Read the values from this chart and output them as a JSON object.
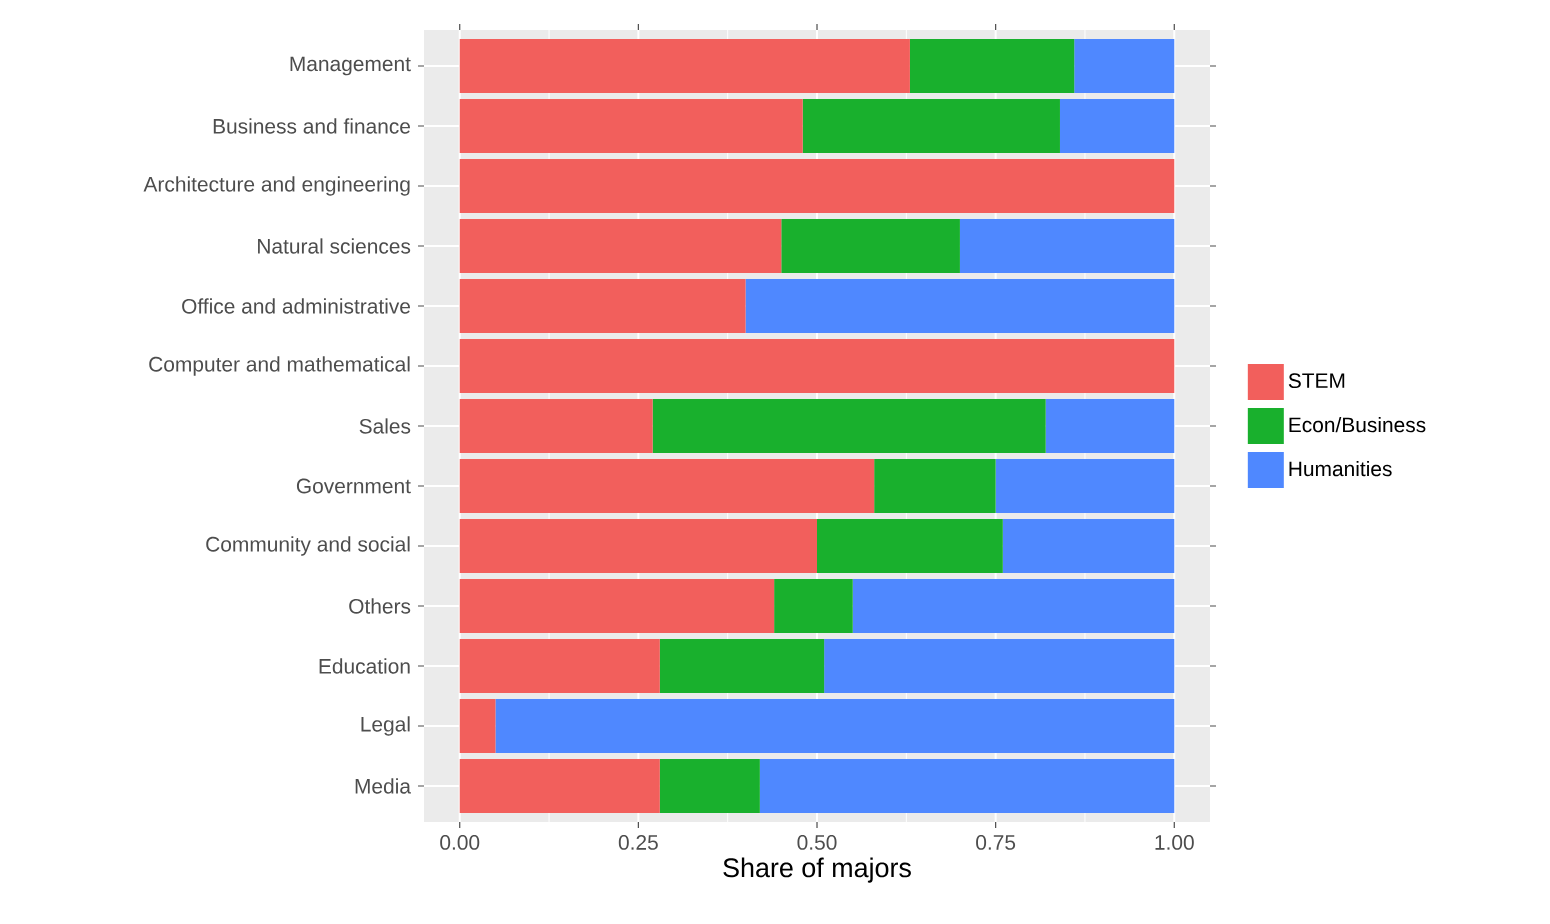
{
  "chart_data": {
    "type": "bar",
    "orientation": "horizontal",
    "stacked": true,
    "xlabel": "Share of majors",
    "categories": [
      "Management",
      "Business and finance",
      "Architecture and engineering",
      "Natural sciences",
      "Office and administrative",
      "Computer and mathematical",
      "Sales",
      "Government",
      "Community and social",
      "Others",
      "Education",
      "Legal",
      "Media"
    ],
    "series": [
      {
        "name": "STEM",
        "color": "#f25f5c",
        "values": [
          0.63,
          0.48,
          1,
          0.45,
          0.4,
          1,
          0.27,
          0.58,
          0.5,
          0.44,
          0.28,
          0.05,
          0.28
        ]
      },
      {
        "name": "Econ/Business",
        "color": "#19b02d",
        "values": [
          0.23,
          0.36,
          0,
          0.25,
          0,
          0,
          0.55,
          0.17,
          0.26,
          0.11,
          0.23,
          0,
          0.14
        ]
      },
      {
        "name": "Humanities",
        "color": "#4f88ff",
        "values": [
          0.14,
          0.16,
          0,
          0.3,
          0.6,
          0,
          0.18,
          0.25,
          0.24,
          0.45,
          0.49,
          0.95,
          0.58
        ]
      }
    ],
    "xlim": [
      -0.05,
      1.05
    ],
    "xticks": [
      {
        "value": 0,
        "label": "0.00"
      },
      {
        "value": 0.25,
        "label": "0.25"
      },
      {
        "value": 0.5,
        "label": "0.50"
      },
      {
        "value": 0.75,
        "label": "0.75"
      },
      {
        "value": 1,
        "label": "1.00"
      }
    ],
    "grid": true,
    "legend": "right"
  }
}
